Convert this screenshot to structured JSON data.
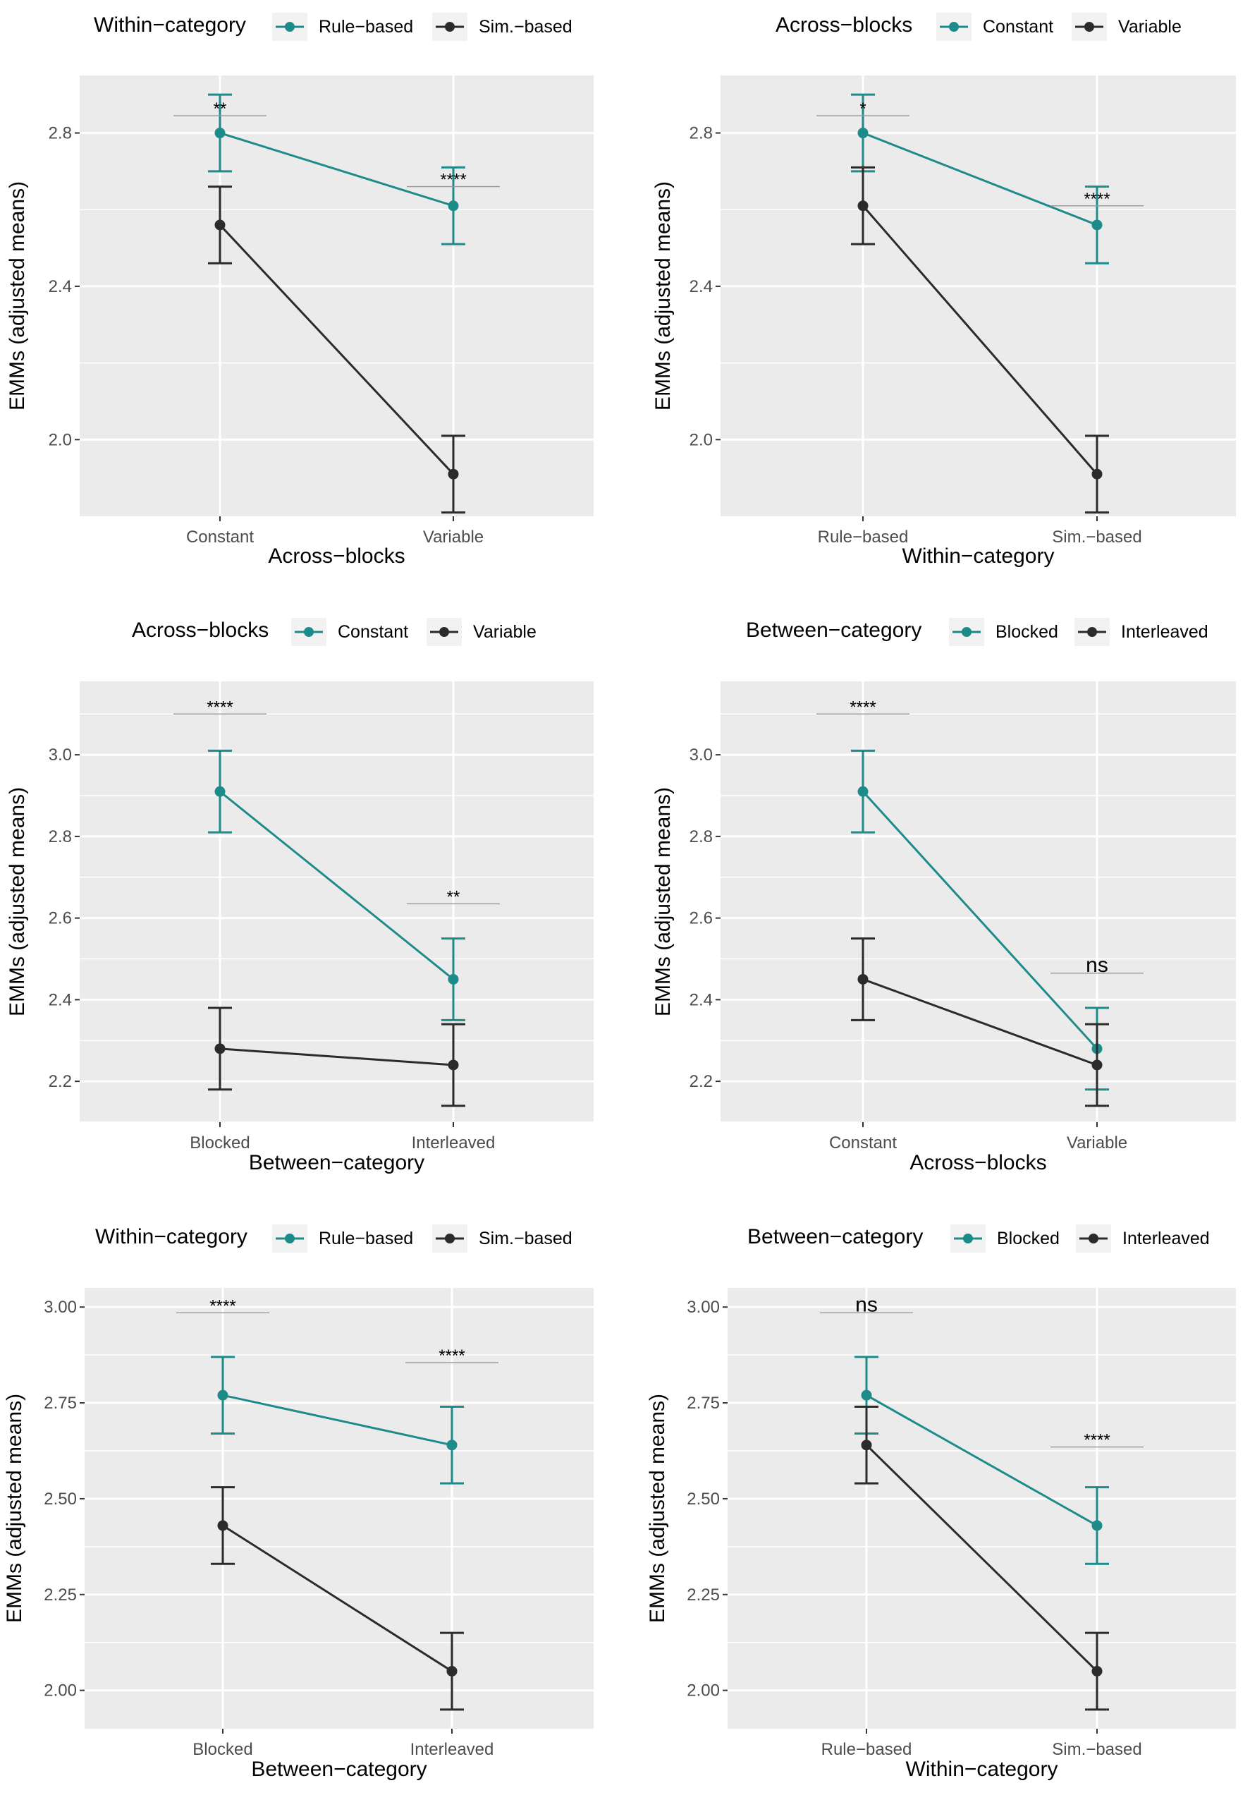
{
  "colors": {
    "series1": "#1e8b8b",
    "series2": "#2b2b2b"
  },
  "chart_data": [
    {
      "type": "line",
      "legend": {
        "title": "Within−category",
        "position": "top",
        "entries": [
          "Rule−based",
          "Sim.−based"
        ]
      },
      "xlabel": "Across−blocks",
      "ylabel": "EMMs (adjusted means)",
      "categories": [
        "Constant",
        "Variable"
      ],
      "ylim": [
        1.8,
        2.95
      ],
      "yticks": [
        2.0,
        2.4,
        2.8
      ],
      "ytick_labels": [
        "2.0",
        "2.4",
        "2.8"
      ],
      "series": [
        {
          "name": "Rule−based",
          "values": [
            2.8,
            2.61
          ],
          "lower": [
            2.7,
            2.51
          ],
          "upper": [
            2.9,
            2.71
          ]
        },
        {
          "name": "Sim.−based",
          "values": [
            2.56,
            1.91
          ],
          "lower": [
            2.46,
            1.81
          ],
          "upper": [
            2.66,
            2.01
          ]
        }
      ],
      "annotations": [
        {
          "category": "Constant",
          "label": "**",
          "y": 2.845
        },
        {
          "category": "Variable",
          "label": "****",
          "y": 2.66
        }
      ]
    },
    {
      "type": "line",
      "legend": {
        "title": "Across−blocks",
        "position": "top",
        "entries": [
          "Constant",
          "Variable"
        ]
      },
      "xlabel": "Within−category",
      "ylabel": "EMMs (adjusted means)",
      "categories": [
        "Rule−based",
        "Sim.−based"
      ],
      "ylim": [
        1.8,
        2.95
      ],
      "yticks": [
        2.0,
        2.4,
        2.8
      ],
      "ytick_labels": [
        "2.0",
        "2.4",
        "2.8"
      ],
      "series": [
        {
          "name": "Constant",
          "values": [
            2.8,
            2.56
          ],
          "lower": [
            2.7,
            2.46
          ],
          "upper": [
            2.9,
            2.66
          ]
        },
        {
          "name": "Variable",
          "values": [
            2.61,
            1.91
          ],
          "lower": [
            2.51,
            1.81
          ],
          "upper": [
            2.71,
            2.01
          ]
        }
      ],
      "annotations": [
        {
          "category": "Rule−based",
          "label": "*",
          "y": 2.845
        },
        {
          "category": "Sim.−based",
          "label": "****",
          "y": 2.61
        }
      ]
    },
    {
      "type": "line",
      "legend": {
        "title": "Across−blocks",
        "position": "top",
        "entries": [
          "Constant",
          "Variable"
        ]
      },
      "xlabel": "Between−category",
      "ylabel": "EMMs (adjusted means)",
      "categories": [
        "Blocked",
        "Interleaved"
      ],
      "ylim": [
        2.1,
        3.18
      ],
      "yticks": [
        2.2,
        2.4,
        2.6,
        2.8,
        3.0
      ],
      "ytick_labels": [
        "2.2",
        "2.4",
        "2.6",
        "2.8",
        "3.0"
      ],
      "series": [
        {
          "name": "Constant",
          "values": [
            2.91,
            2.45
          ],
          "lower": [
            2.81,
            2.35
          ],
          "upper": [
            3.01,
            2.55
          ]
        },
        {
          "name": "Variable",
          "values": [
            2.28,
            2.24
          ],
          "lower": [
            2.18,
            2.14
          ],
          "upper": [
            2.38,
            2.34
          ]
        }
      ],
      "annotations": [
        {
          "category": "Blocked",
          "label": "****",
          "y": 3.1
        },
        {
          "category": "Interleaved",
          "label": "**",
          "y": 2.635
        }
      ]
    },
    {
      "type": "line",
      "legend": {
        "title": "Between−category",
        "position": "top",
        "entries": [
          "Blocked",
          "Interleaved"
        ]
      },
      "xlabel": "Across−blocks",
      "ylabel": "EMMs (adjusted means)",
      "categories": [
        "Constant",
        "Variable"
      ],
      "ylim": [
        2.1,
        3.18
      ],
      "yticks": [
        2.2,
        2.4,
        2.6,
        2.8,
        3.0
      ],
      "ytick_labels": [
        "2.2",
        "2.4",
        "2.6",
        "2.8",
        "3.0"
      ],
      "series": [
        {
          "name": "Blocked",
          "values": [
            2.91,
            2.28
          ],
          "lower": [
            2.81,
            2.18
          ],
          "upper": [
            3.01,
            2.38
          ]
        },
        {
          "name": "Interleaved",
          "values": [
            2.45,
            2.24
          ],
          "lower": [
            2.35,
            2.14
          ],
          "upper": [
            2.55,
            2.34
          ]
        }
      ],
      "annotations": [
        {
          "category": "Constant",
          "label": "****",
          "y": 3.1
        },
        {
          "category": "Variable",
          "label": "ns",
          "y": 2.465
        }
      ]
    },
    {
      "type": "line",
      "legend": {
        "title": "Within−category",
        "position": "top",
        "entries": [
          "Rule−based",
          "Sim.−based"
        ]
      },
      "xlabel": "Between−category",
      "ylabel": "EMMs (adjusted means)",
      "categories": [
        "Blocked",
        "Interleaved"
      ],
      "ylim": [
        1.9,
        3.05
      ],
      "yticks": [
        2.0,
        2.25,
        2.5,
        2.75,
        3.0
      ],
      "ytick_labels": [
        "2.00",
        "2.25",
        "2.50",
        "2.75",
        "3.00"
      ],
      "series": [
        {
          "name": "Rule−based",
          "values": [
            2.77,
            2.64
          ],
          "lower": [
            2.67,
            2.54
          ],
          "upper": [
            2.87,
            2.74
          ]
        },
        {
          "name": "Sim.−based",
          "values": [
            2.43,
            2.05
          ],
          "lower": [
            2.33,
            1.95
          ],
          "upper": [
            2.53,
            2.15
          ]
        }
      ],
      "annotations": [
        {
          "category": "Blocked",
          "label": "****",
          "y": 2.985
        },
        {
          "category": "Interleaved",
          "label": "****",
          "y": 2.855
        }
      ]
    },
    {
      "type": "line",
      "legend": {
        "title": "Between−category",
        "position": "top",
        "entries": [
          "Blocked",
          "Interleaved"
        ]
      },
      "xlabel": "Within−category",
      "ylabel": "EMMs (adjusted means)",
      "categories": [
        "Rule−based",
        "Sim.−based"
      ],
      "ylim": [
        1.9,
        3.05
      ],
      "yticks": [
        2.0,
        2.25,
        2.5,
        2.75,
        3.0
      ],
      "ytick_labels": [
        "2.00",
        "2.25",
        "2.50",
        "2.75",
        "3.00"
      ],
      "series": [
        {
          "name": "Blocked",
          "values": [
            2.77,
            2.43
          ],
          "lower": [
            2.67,
            2.33
          ],
          "upper": [
            2.87,
            2.53
          ]
        },
        {
          "name": "Interleaved",
          "values": [
            2.64,
            2.05
          ],
          "lower": [
            2.54,
            1.95
          ],
          "upper": [
            2.74,
            2.15
          ]
        }
      ],
      "annotations": [
        {
          "category": "Rule−based",
          "label": "ns",
          "y": 2.985
        },
        {
          "category": "Sim.−based",
          "label": "****",
          "y": 2.635
        }
      ]
    }
  ]
}
